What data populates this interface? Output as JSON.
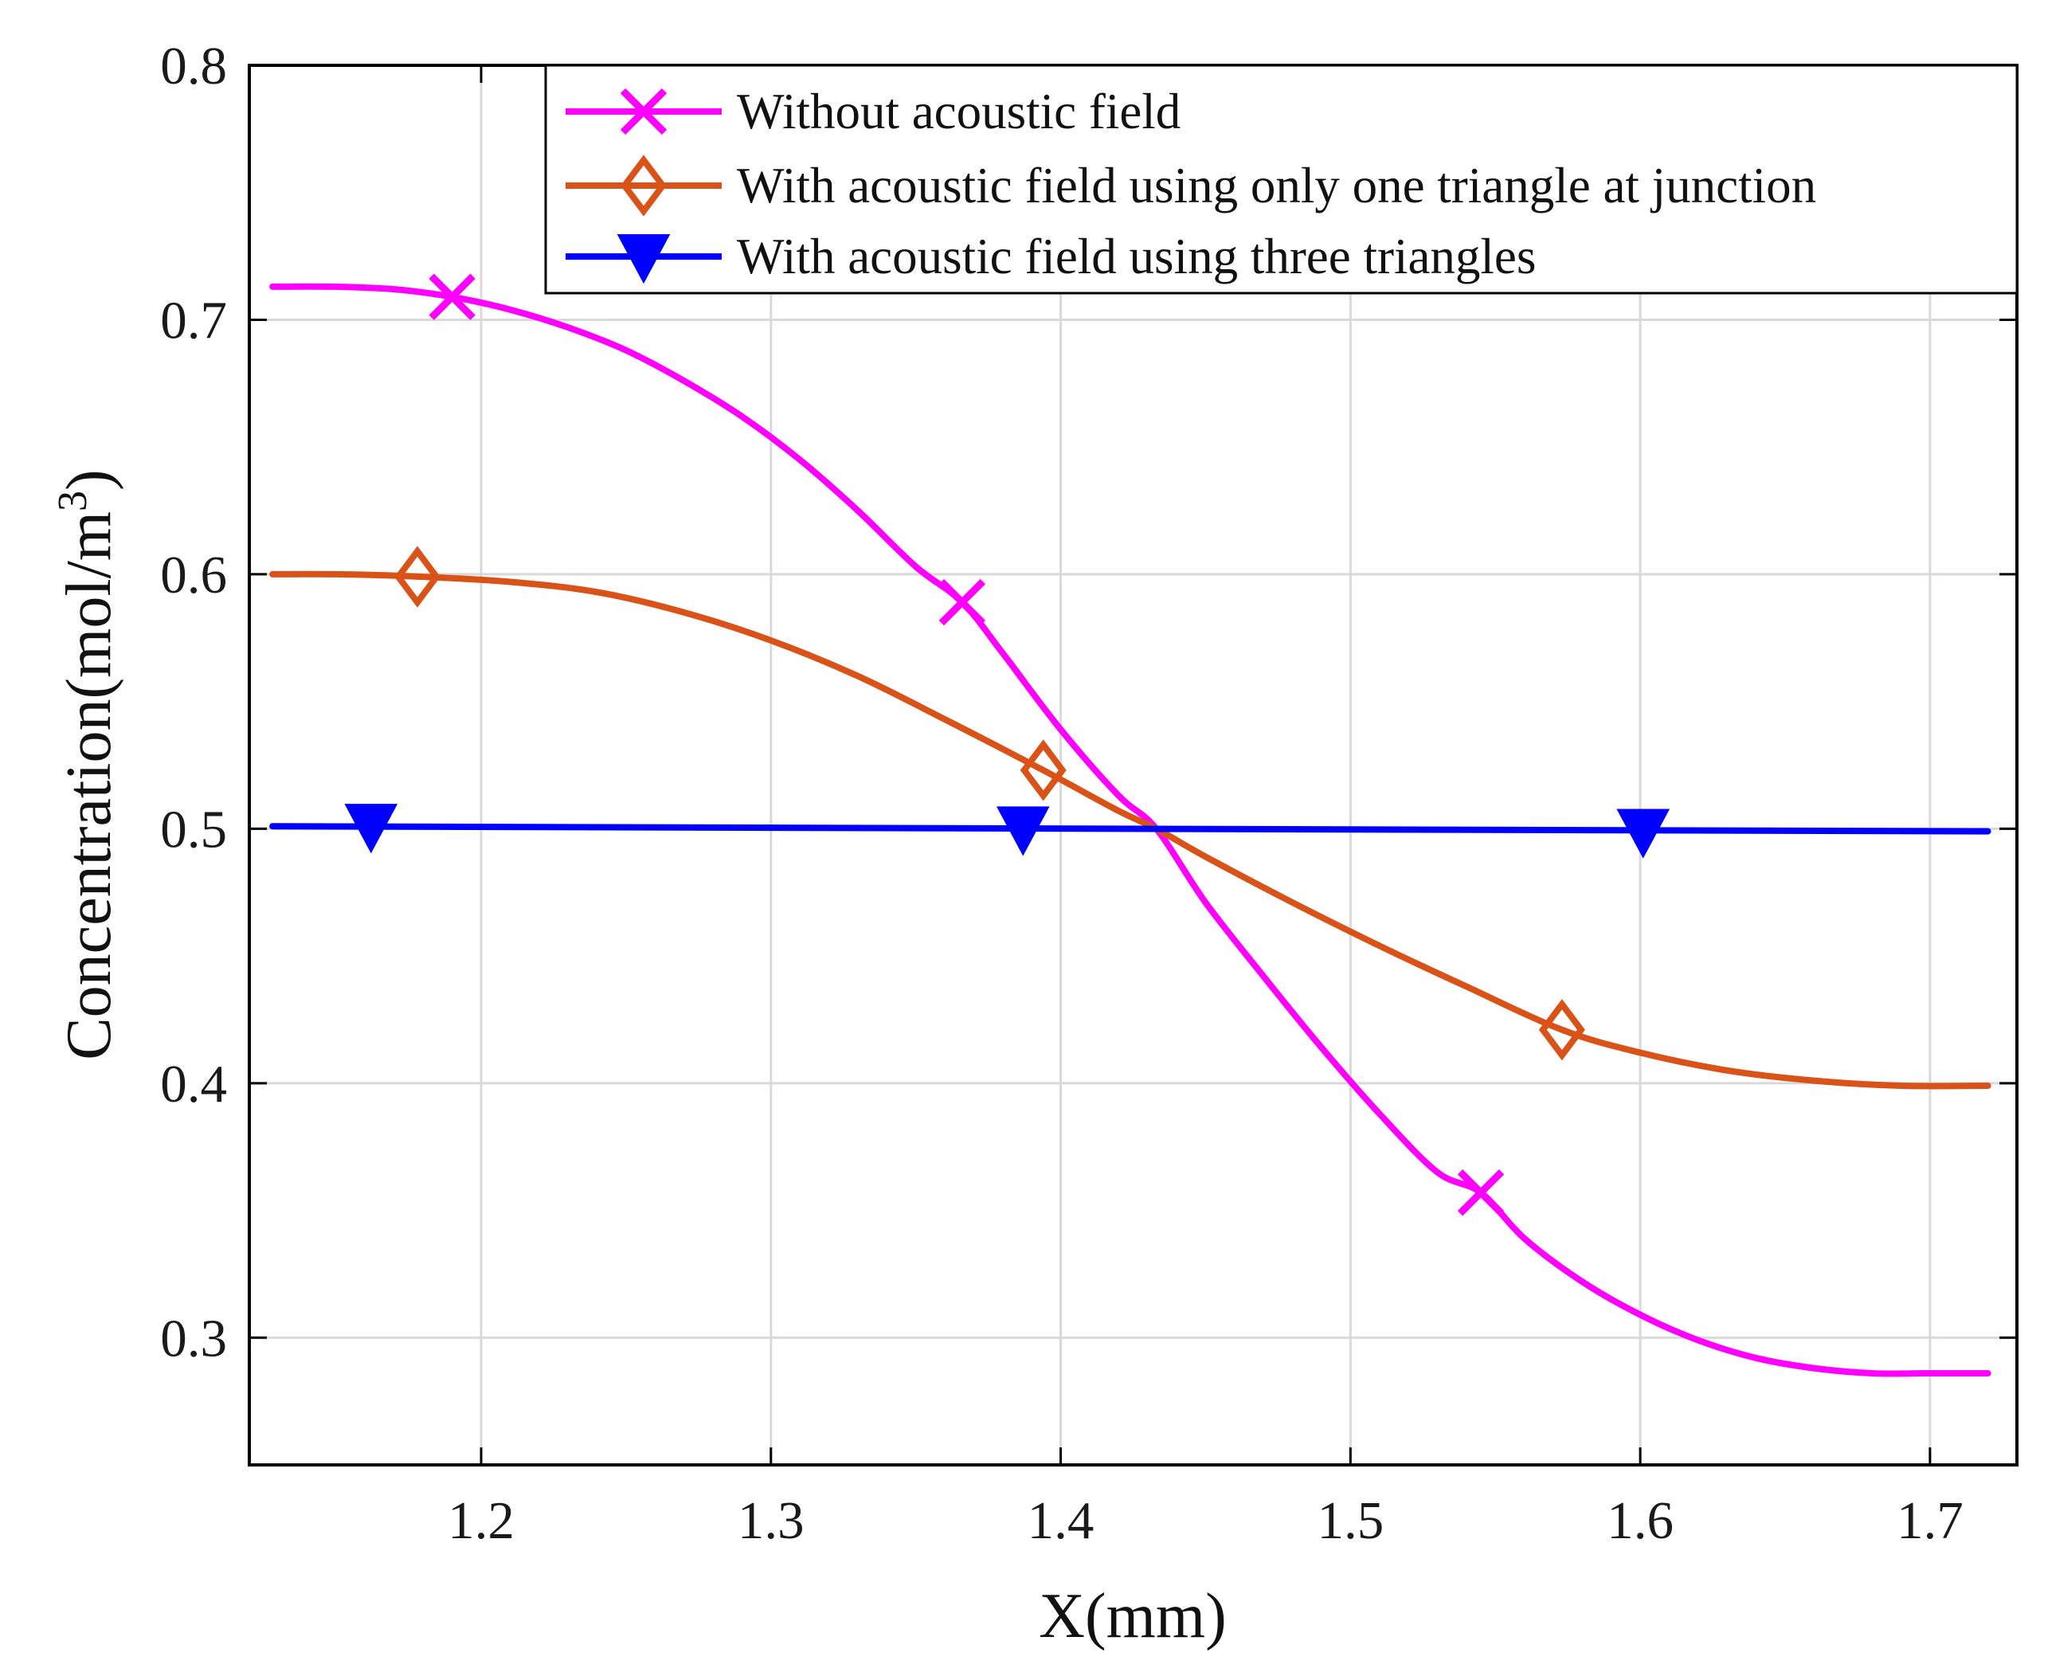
{
  "chart_data": {
    "type": "line",
    "xlabel": "X(mm)",
    "ylabel": "Concentration(mol/m",
    "ylabel_superscript": "3",
    "ylabel_suffix": ")",
    "xlim": [
      1.12,
      1.73
    ],
    "ylim": [
      0.25,
      0.8
    ],
    "xticks": [
      1.2,
      1.3,
      1.4,
      1.5,
      1.6,
      1.7
    ],
    "xtick_labels": [
      "1.2",
      "1.3",
      "1.4",
      "1.5",
      "1.6",
      "1.7"
    ],
    "yticks": [
      0.3,
      0.4,
      0.5,
      0.6,
      0.7,
      0.8
    ],
    "ytick_labels": [
      "0.3",
      "0.4",
      "0.5",
      "0.6",
      "0.7",
      "0.8"
    ],
    "grid": true,
    "legend_position": "top-right",
    "series": [
      {
        "name": "Without acoustic field",
        "color": "#ff00ff",
        "marker": "x",
        "x": [
          1.128,
          1.15,
          1.17,
          1.19,
          1.21,
          1.23,
          1.25,
          1.27,
          1.29,
          1.31,
          1.33,
          1.35,
          1.366,
          1.38,
          1.4,
          1.42,
          1.433,
          1.45,
          1.47,
          1.49,
          1.51,
          1.53,
          1.545,
          1.56,
          1.58,
          1.6,
          1.62,
          1.64,
          1.66,
          1.68,
          1.7,
          1.72
        ],
        "y": [
          0.713,
          0.713,
          0.712,
          0.709,
          0.704,
          0.697,
          0.688,
          0.676,
          0.662,
          0.645,
          0.625,
          0.603,
          0.589,
          0.569,
          0.539,
          0.513,
          0.5,
          0.471,
          0.442,
          0.414,
          0.388,
          0.365,
          0.357,
          0.339,
          0.322,
          0.309,
          0.299,
          0.292,
          0.288,
          0.286,
          0.286,
          0.286
        ],
        "markers": {
          "x": [
            1.19,
            1.366,
            1.545
          ],
          "y": [
            0.709,
            0.589,
            0.357
          ]
        }
      },
      {
        "name": "With acoustic field using only one triangle at junction",
        "color": "#d95319",
        "marker": "diamond",
        "x": [
          1.128,
          1.15,
          1.18,
          1.21,
          1.24,
          1.27,
          1.3,
          1.33,
          1.36,
          1.394,
          1.42,
          1.433,
          1.45,
          1.48,
          1.51,
          1.54,
          1.573,
          1.6,
          1.63,
          1.66,
          1.69,
          1.72
        ],
        "y": [
          0.6,
          0.6,
          0.599,
          0.597,
          0.593,
          0.585,
          0.574,
          0.56,
          0.543,
          0.523,
          0.507,
          0.5,
          0.489,
          0.471,
          0.454,
          0.438,
          0.421,
          0.412,
          0.405,
          0.401,
          0.399,
          0.399
        ],
        "markers": {
          "x": [
            1.178,
            1.394,
            1.573
          ],
          "y": [
            0.599,
            0.523,
            0.421
          ]
        }
      },
      {
        "name": "With acoustic field using three triangles",
        "color": "#0000ff",
        "marker": "triangle-down",
        "x": [
          1.128,
          1.72
        ],
        "y": [
          0.501,
          0.499
        ],
        "markers": {
          "x": [
            1.162,
            1.387,
            1.601
          ],
          "y": [
            0.501,
            0.5,
            0.499
          ]
        }
      }
    ]
  }
}
